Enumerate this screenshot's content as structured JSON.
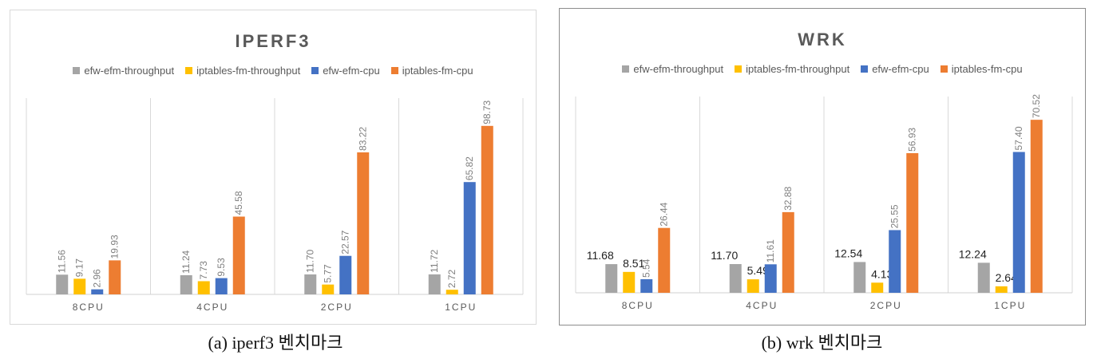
{
  "series_colors": [
    "#a5a5a5",
    "#ffc000",
    "#4472c4",
    "#ed7d31"
  ],
  "panels": [
    {
      "caption": "(a) iperf3 벤치마크",
      "chart_data": {
        "type": "bar",
        "title": "IPERF3",
        "categories": [
          "8CPU",
          "4CPU",
          "2CPU",
          "1CPU"
        ],
        "series": [
          {
            "name": "efw-efm-throughput",
            "values": [
              11.56,
              11.24,
              11.7,
              11.72
            ],
            "labels": [
              "11.56",
              "11.24",
              "11.70",
              "11.72"
            ]
          },
          {
            "name": "iptables-fm-throughput",
            "values": [
              9.17,
              7.73,
              5.77,
              2.72
            ],
            "labels": [
              "9.17",
              "7.73",
              "5.77",
              "2.72"
            ]
          },
          {
            "name": "efw-efm-cpu",
            "values": [
              2.96,
              9.53,
              22.57,
              65.82
            ],
            "labels": [
              "2.96",
              "9.53",
              "22.57",
              "65.82"
            ]
          },
          {
            "name": "iptables-fm-cpu",
            "values": [
              19.93,
              45.58,
              83.22,
              98.73
            ],
            "labels": [
              "19.93",
              "45.58",
              "83.22",
              "98.73"
            ]
          }
        ],
        "ylim": [
          0,
          115
        ],
        "legend": "top",
        "label_style": "rotated"
      }
    },
    {
      "caption": "(b) wrk 벤치마크",
      "chart_data": {
        "type": "bar",
        "title": "WRK",
        "categories": [
          "8CPU",
          "4CPU",
          "2CPU",
          "1CPU"
        ],
        "series": [
          {
            "name": "efw-efm-throughput",
            "values": [
              11.68,
              11.7,
              12.54,
              12.24
            ],
            "labels": [
              "11.68",
              "11.70",
              "12.54",
              "12.24"
            ]
          },
          {
            "name": "iptables-fm-throughput",
            "values": [
              8.51,
              5.49,
              4.13,
              2.64
            ],
            "labels": [
              "8.51",
              "5.49",
              "4.13",
              "2.64"
            ]
          },
          {
            "name": "efw-efm-cpu",
            "values": [
              5.54,
              11.61,
              25.55,
              57.4
            ],
            "labels": [
              "5.54",
              "11.61",
              "25.55",
              "57.40"
            ]
          },
          {
            "name": "iptables-fm-cpu",
            "values": [
              26.44,
              32.88,
              56.93,
              70.52
            ],
            "labels": [
              "26.44",
              "32.88",
              "56.93",
              "70.52"
            ]
          }
        ],
        "ylim": [
          0,
          80
        ],
        "legend": "top",
        "label_style": "mixed"
      }
    }
  ]
}
